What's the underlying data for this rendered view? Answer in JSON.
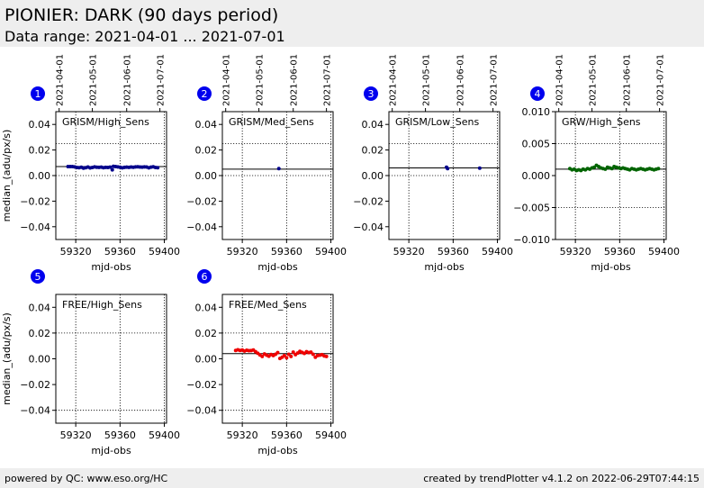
{
  "header": {
    "title": "PIONIER: DARK (90 days period)",
    "subtitle": "Data range: 2021-04-01 ... 2021-07-01"
  },
  "footer": {
    "left": "powered by QC: www.eso.org/HC",
    "right": "created by trendPlotter v4.1.2 on 2022-06-29T07:44:15"
  },
  "colors": {
    "badge": "#0000ee",
    "blue_series": "#00008b",
    "green_series": "#006400",
    "red_series": "#ee0000"
  },
  "chart_data": [
    {
      "type": "scatter",
      "badge": "1",
      "title": "GRISM/High_Sens",
      "xlabel": "mjd-obs",
      "ylabel": "median_(adu/px/s)",
      "xlim": [
        59302,
        59402
      ],
      "ylim": [
        -0.05,
        0.05
      ],
      "xticks": [
        59320,
        59360,
        59400
      ],
      "yticks": [
        0.04,
        0.02,
        0.0,
        -0.02,
        -0.04
      ],
      "ytick_labels": [
        "0.04",
        "0.02",
        "0.00",
        "−0.02",
        "−0.04"
      ],
      "date_ticks": [
        {
          "x": 59305,
          "label": "2021-04-01"
        },
        {
          "x": 59335,
          "label": "2021-05-01"
        },
        {
          "x": 59366,
          "label": "2021-06-01"
        },
        {
          "x": 59396,
          "label": "2021-07-01"
        }
      ],
      "ref_line": 0.007,
      "hlines": [
        0.025,
        0.0
      ],
      "series": [
        {
          "color": "#00008b",
          "x": [
            59313,
            59315,
            59317,
            59319,
            59321,
            59323,
            59325,
            59327,
            59329,
            59331,
            59333,
            59335,
            59337,
            59339,
            59341,
            59343,
            59345,
            59347,
            59349,
            59351,
            59353,
            59354,
            59356,
            59358,
            59360,
            59362,
            59364,
            59366,
            59368,
            59370,
            59372,
            59374,
            59376,
            59378,
            59380,
            59382,
            59384,
            59386,
            59388,
            59390,
            59392,
            59394
          ],
          "y": [
            0.007,
            0.007,
            0.007,
            0.0068,
            0.0063,
            0.0062,
            0.0065,
            0.0058,
            0.0062,
            0.0067,
            0.006,
            0.0063,
            0.0068,
            0.0065,
            0.0064,
            0.0066,
            0.0062,
            0.0064,
            0.0063,
            0.0066,
            0.0045,
            0.0072,
            0.007,
            0.0068,
            0.0065,
            0.0061,
            0.0064,
            0.0066,
            0.0064,
            0.0067,
            0.0065,
            0.0068,
            0.0069,
            0.0067,
            0.0066,
            0.0068,
            0.0067,
            0.0061,
            0.0066,
            0.0069,
            0.0063,
            0.0062
          ]
        }
      ]
    },
    {
      "type": "scatter",
      "badge": "2",
      "title": "GRISM/Med_Sens",
      "xlabel": "mjd-obs",
      "ylabel": "",
      "xlim": [
        59302,
        59402
      ],
      "ylim": [
        -0.05,
        0.05
      ],
      "xticks": [
        59320,
        59360,
        59400
      ],
      "yticks": [
        0.04,
        0.02,
        0.0,
        -0.02,
        -0.04
      ],
      "ytick_labels": [
        "0.04",
        "0.02",
        "0.00",
        "−0.02",
        "−0.04"
      ],
      "date_ticks": [
        {
          "x": 59305,
          "label": "2021-04-01"
        },
        {
          "x": 59335,
          "label": "2021-05-01"
        },
        {
          "x": 59366,
          "label": "2021-06-01"
        },
        {
          "x": 59396,
          "label": "2021-07-01"
        }
      ],
      "ref_line": 0.005,
      "hlines": [
        0.025,
        0.0
      ],
      "series": [
        {
          "color": "#00008b",
          "x": [
            59353
          ],
          "y": [
            0.0055
          ]
        }
      ]
    },
    {
      "type": "scatter",
      "badge": "3",
      "title": "GRISM/Low_Sens",
      "xlabel": "mjd-obs",
      "ylabel": "",
      "xlim": [
        59302,
        59402
      ],
      "ylim": [
        -0.05,
        0.05
      ],
      "xticks": [
        59320,
        59360,
        59400
      ],
      "yticks": [
        0.04,
        0.02,
        0.0,
        -0.02,
        -0.04
      ],
      "ytick_labels": [
        "0.04",
        "0.02",
        "0.00",
        "−0.02",
        "−0.04"
      ],
      "date_ticks": [
        {
          "x": 59305,
          "label": "2021-04-01"
        },
        {
          "x": 59335,
          "label": "2021-05-01"
        },
        {
          "x": 59366,
          "label": "2021-06-01"
        },
        {
          "x": 59396,
          "label": "2021-07-01"
        }
      ],
      "ref_line": 0.006,
      "hlines": [
        0.025,
        0.0
      ],
      "series": [
        {
          "color": "#00008b",
          "x": [
            59354,
            59355,
            59384
          ],
          "y": [
            0.0065,
            0.0055,
            0.0058
          ]
        }
      ]
    },
    {
      "type": "scatter",
      "badge": "4",
      "title": "GRW/High_Sens",
      "xlabel": "mjd-obs",
      "ylabel": "",
      "xlim": [
        59302,
        59402
      ],
      "ylim": [
        -0.01,
        0.01
      ],
      "xticks": [
        59320,
        59360,
        59400
      ],
      "yticks": [
        0.01,
        0.005,
        0.0,
        -0.005,
        -0.01
      ],
      "ytick_labels": [
        "0.010",
        "0.005",
        "0.000",
        "−0.005",
        "−0.010"
      ],
      "date_ticks": [
        {
          "x": 59305,
          "label": "2021-04-01"
        },
        {
          "x": 59335,
          "label": "2021-05-01"
        },
        {
          "x": 59366,
          "label": "2021-06-01"
        },
        {
          "x": 59396,
          "label": "2021-07-01"
        }
      ],
      "ref_line": 0.001,
      "hlines": [
        0.005,
        -0.005
      ],
      "series": [
        {
          "color": "#006400",
          "x": [
            59315,
            59317,
            59319,
            59321,
            59323,
            59325,
            59327,
            59329,
            59331,
            59333,
            59335,
            59337,
            59339,
            59341,
            59343,
            59345,
            59347,
            59349,
            59351,
            59353,
            59355,
            59357,
            59359,
            59361,
            59363,
            59365,
            59367,
            59369,
            59371,
            59373,
            59375,
            59377,
            59379,
            59381,
            59383,
            59385,
            59387,
            59389,
            59391,
            59393,
            59395
          ],
          "y": [
            0.0011,
            0.0009,
            0.001,
            0.0008,
            0.0009,
            0.0008,
            0.001,
            0.0009,
            0.0011,
            0.001,
            0.0012,
            0.0013,
            0.0016,
            0.0014,
            0.0012,
            0.0011,
            0.001,
            0.0013,
            0.0012,
            0.0011,
            0.0014,
            0.0013,
            0.0012,
            0.0011,
            0.0012,
            0.0011,
            0.001,
            0.0009,
            0.0011,
            0.001,
            0.0009,
            0.001,
            0.0011,
            0.001,
            0.0009,
            0.001,
            0.0011,
            0.001,
            0.0009,
            0.001,
            0.0011
          ]
        }
      ]
    },
    {
      "type": "scatter",
      "badge": "5",
      "title": "FREE/High_Sens",
      "xlabel": "mjd-obs",
      "ylabel": "median_(adu/px/s)",
      "xlim": [
        59302,
        59402
      ],
      "ylim": [
        -0.05,
        0.05
      ],
      "xticks": [
        59320,
        59360,
        59400
      ],
      "yticks": [
        0.04,
        0.02,
        0.0,
        -0.02,
        -0.04
      ],
      "ytick_labels": [
        "0.04",
        "0.02",
        "0.00",
        "−0.02",
        "−0.04"
      ],
      "date_ticks": [],
      "ref_line": null,
      "hlines": [
        0.02,
        -0.04
      ],
      "series": []
    },
    {
      "type": "scatter",
      "badge": "6",
      "title": "FREE/Med_Sens",
      "xlabel": "mjd-obs",
      "ylabel": "",
      "xlim": [
        59302,
        59402
      ],
      "ylim": [
        -0.05,
        0.05
      ],
      "xticks": [
        59320,
        59360,
        59400
      ],
      "yticks": [
        0.04,
        0.02,
        0.0,
        -0.02,
        -0.04
      ],
      "ytick_labels": [
        "0.04",
        "0.02",
        "0.00",
        "−0.02",
        "−0.04"
      ],
      "date_ticks": [],
      "ref_line": 0.004,
      "hlines": [
        0.02,
        -0.04
      ],
      "series": [
        {
          "color": "#ee0000",
          "x": [
            59314,
            59316,
            59318,
            59320,
            59322,
            59324,
            59326,
            59328,
            59330,
            59332,
            59334,
            59336,
            59338,
            59340,
            59342,
            59344,
            59346,
            59348,
            59350,
            59352,
            59354,
            59356,
            59358,
            59360,
            59362,
            59364,
            59366,
            59368,
            59370,
            59372,
            59374,
            59376,
            59378,
            59380,
            59382,
            59384,
            59386,
            59388,
            59390,
            59392,
            59394,
            59396
          ],
          "y": [
            0.0065,
            0.007,
            0.0065,
            0.0068,
            0.006,
            0.0066,
            0.0063,
            0.0064,
            0.0068,
            0.0055,
            0.0043,
            0.003,
            0.0018,
            0.0038,
            0.0028,
            0.002,
            0.0033,
            0.0025,
            0.0035,
            0.0048,
            0.0003,
            0.0012,
            0.0025,
            0.0008,
            0.0035,
            0.0018,
            0.0052,
            0.0032,
            0.0045,
            0.0058,
            0.005,
            0.0042,
            0.0055,
            0.0048,
            0.0052,
            0.0035,
            0.0012,
            0.0025,
            0.0028,
            0.0032,
            0.0022,
            0.0018
          ]
        }
      ]
    }
  ]
}
